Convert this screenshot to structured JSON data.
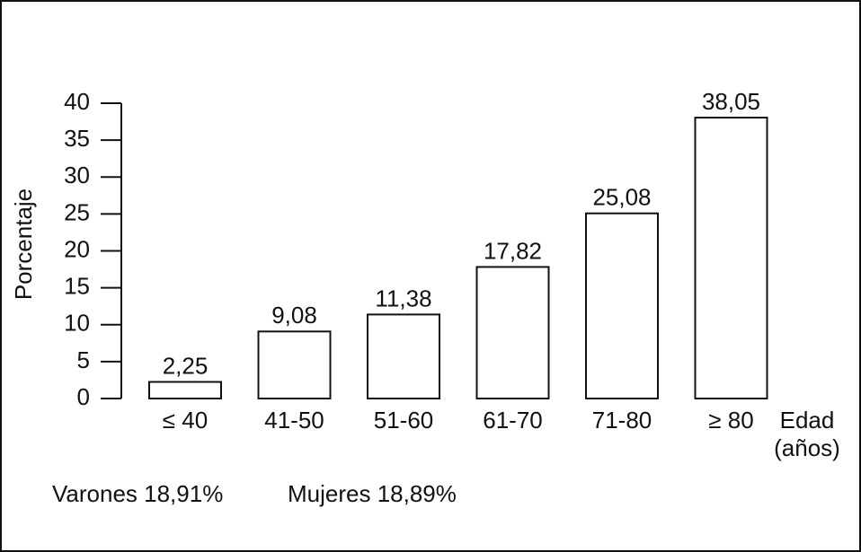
{
  "chart_data": {
    "type": "bar",
    "ylabel": "Porcentaje",
    "xlabel": [
      "Edad",
      "(años)"
    ],
    "categories": [
      "≤ 40",
      "41-50",
      "51-60",
      "61-70",
      "71-80",
      "≥ 80"
    ],
    "values": [
      2.25,
      9.08,
      11.38,
      17.82,
      25.08,
      38.05
    ],
    "value_labels": [
      "2,25",
      "9,08",
      "11,38",
      "17,82",
      "25,08",
      "38,05"
    ],
    "color": "#ffffff",
    "ylim": [
      0,
      40
    ],
    "yticks": [
      0,
      5,
      10,
      15,
      20,
      25,
      30,
      35,
      40
    ],
    "grid": false,
    "annotations": [
      "Varones 18,91%",
      "Mujeres 18,89%"
    ]
  }
}
